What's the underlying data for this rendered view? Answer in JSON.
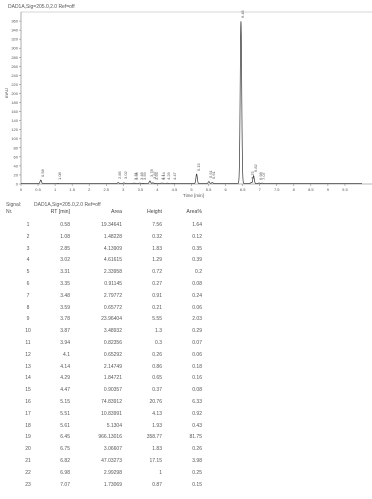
{
  "chart_data": {
    "type": "line",
    "title": "DAD1A,Sig=205.0,2.0 Ref=off",
    "xlabel": "Time [min]",
    "ylabel": "mAU",
    "xlim": [
      0,
      10
    ],
    "ylim": [
      0,
      380
    ],
    "x_ticks": [
      "0",
      "0.5",
      "1",
      "1.5",
      "2",
      "2.5",
      "3",
      "3.5",
      "4",
      "4.5",
      "5",
      "5.5",
      "6",
      "6.5",
      "7",
      "7.5",
      "8",
      "8.5",
      "9",
      "9.5"
    ],
    "y_ticks": [
      "0",
      "20",
      "40",
      "60",
      "80",
      "100",
      "120",
      "140",
      "160",
      "180",
      "200",
      "220",
      "240",
      "260",
      "280",
      "300",
      "320",
      "340",
      "360"
    ],
    "grid": false,
    "peak_labels": [
      "0.58",
      "1.08",
      "2.85",
      "3.02",
      "3.31",
      "3.35",
      "3.48",
      "3.59",
      "3.78",
      "3.87",
      "3.94",
      "4.1",
      "4.14",
      "4.29",
      "4.47",
      "5.15",
      "5.51",
      "5.61",
      "6.45",
      "6.75",
      "6.82",
      "6.98",
      "7.07"
    ],
    "series": [
      {
        "x": [
          0.58,
          1.08,
          2.85,
          3.02,
          3.31,
          3.35,
          3.48,
          3.59,
          3.78,
          3.87,
          3.94,
          4.1,
          4.14,
          4.29,
          4.47,
          5.15,
          5.51,
          5.61,
          6.45,
          6.75,
          6.82,
          6.98,
          7.07
        ],
        "y": [
          7.56,
          0.32,
          1.83,
          1.29,
          0.72,
          0.27,
          0.91,
          0.21,
          5.55,
          1.3,
          0.3,
          0.26,
          0.86,
          0.65,
          0.37,
          20.76,
          4.13,
          1.93,
          358.77,
          1.83,
          17.15,
          1,
          0.87
        ]
      }
    ]
  },
  "table": {
    "signal_label": "Signal:",
    "signal_value": "DAD1A,Sig=205.0,2.0 Ref=off",
    "nr_label": "Nr.",
    "headers": {
      "rt": "RT [min]",
      "area": "Area",
      "height": "Height",
      "area_pct": "Area%"
    },
    "rows": [
      {
        "nr": "1",
        "rt": "0.58",
        "area": "19.34641",
        "height": "7.56",
        "pct": "1.64"
      },
      {
        "nr": "2",
        "rt": "1.08",
        "area": "1.48228",
        "height": "0.32",
        "pct": "0.12"
      },
      {
        "nr": "3",
        "rt": "2.85",
        "area": "4.13909",
        "height": "1.83",
        "pct": "0.35"
      },
      {
        "nr": "4",
        "rt": "3.02",
        "area": "4.61615",
        "height": "1.29",
        "pct": "0.39"
      },
      {
        "nr": "5",
        "rt": "3.31",
        "area": "2.33958",
        "height": "0.72",
        "pct": "0.2"
      },
      {
        "nr": "6",
        "rt": "3.35",
        "area": "0.91145",
        "height": "0.27",
        "pct": "0.08"
      },
      {
        "nr": "7",
        "rt": "3.48",
        "area": "2.79772",
        "height": "0.91",
        "pct": "0.24"
      },
      {
        "nr": "8",
        "rt": "3.59",
        "area": "0.65772",
        "height": "0.21",
        "pct": "0.06"
      },
      {
        "nr": "9",
        "rt": "3.78",
        "area": "23.96404",
        "height": "5.55",
        "pct": "2.03"
      },
      {
        "nr": "10",
        "rt": "3.87",
        "area": "3.48932",
        "height": "1.3",
        "pct": "0.29"
      },
      {
        "nr": "11",
        "rt": "3.94",
        "area": "0.82356",
        "height": "0.3",
        "pct": "0.07"
      },
      {
        "nr": "12",
        "rt": "4.1",
        "area": "0.65292",
        "height": "0.26",
        "pct": "0.06"
      },
      {
        "nr": "13",
        "rt": "4.14",
        "area": "2.14749",
        "height": "0.86",
        "pct": "0.18"
      },
      {
        "nr": "14",
        "rt": "4.29",
        "area": "1.84721",
        "height": "0.65",
        "pct": "0.16"
      },
      {
        "nr": "15",
        "rt": "4.47",
        "area": "0.90357",
        "height": "0.37",
        "pct": "0.08"
      },
      {
        "nr": "16",
        "rt": "5.15",
        "area": "74.83912",
        "height": "20.76",
        "pct": "6.33"
      },
      {
        "nr": "17",
        "rt": "5.51",
        "area": "10.83991",
        "height": "4.13",
        "pct": "0.92"
      },
      {
        "nr": "18",
        "rt": "5.61",
        "area": "5.1304",
        "height": "1.93",
        "pct": "0.43"
      },
      {
        "nr": "19",
        "rt": "6.45",
        "area": "966.13016",
        "height": "358.77",
        "pct": "81.75"
      },
      {
        "nr": "20",
        "rt": "6.75",
        "area": "3.06607",
        "height": "1.83",
        "pct": "0.26"
      },
      {
        "nr": "21",
        "rt": "6.82",
        "area": "47.03273",
        "height": "17.15",
        "pct": "3.98"
      },
      {
        "nr": "22",
        "rt": "6.98",
        "area": "2.99298",
        "height": "1",
        "pct": "0.25"
      },
      {
        "nr": "23",
        "rt": "7.07",
        "area": "1.73069",
        "height": "0.87",
        "pct": "0.15"
      }
    ]
  }
}
